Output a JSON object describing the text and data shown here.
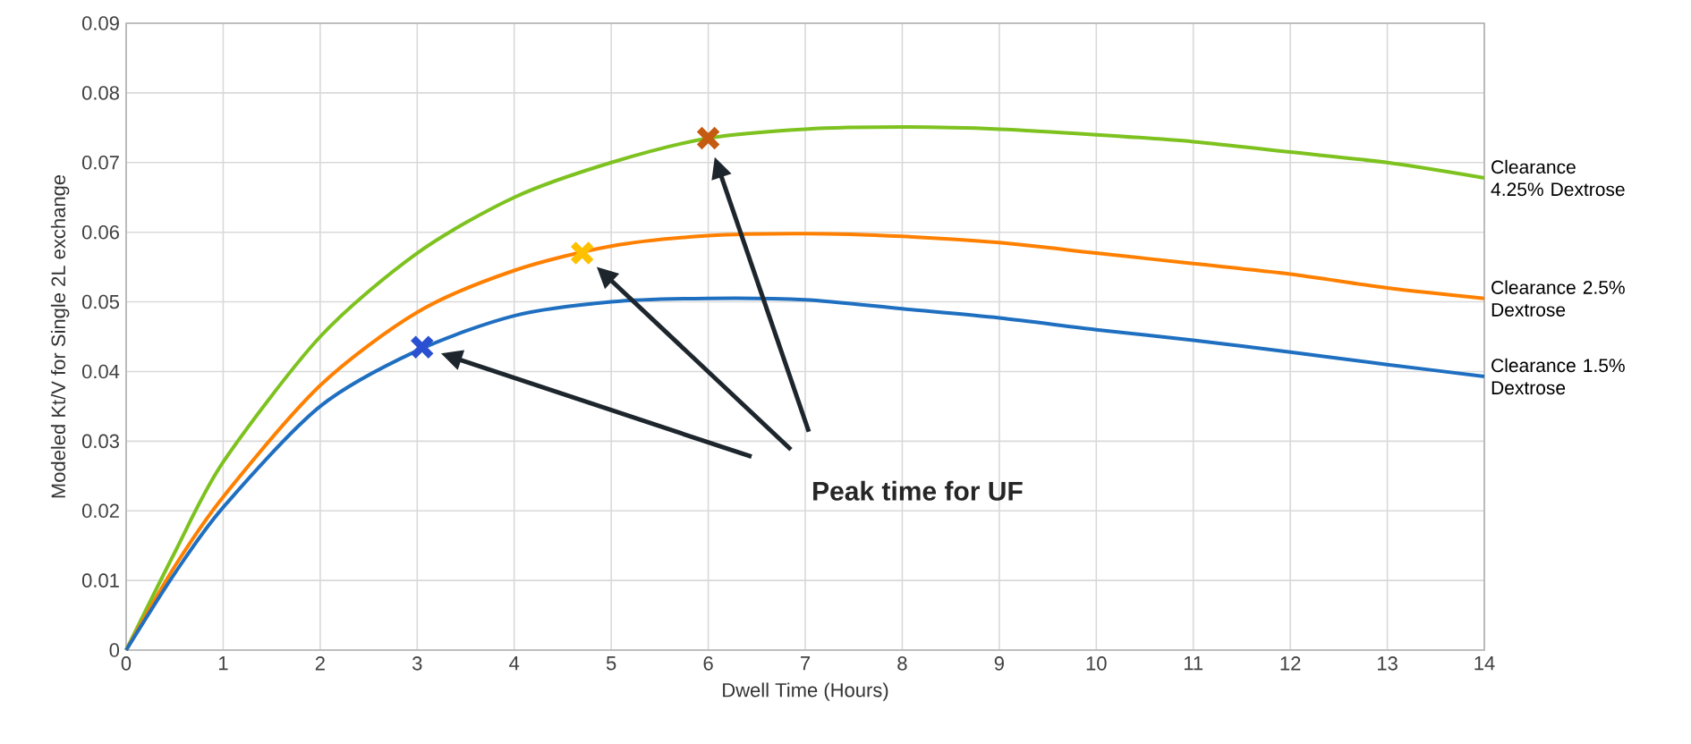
{
  "chart_data": {
    "type": "line",
    "xlabel": "Dwell Time (Hours)",
    "ylabel": "Modeled Kt/V for Single 2L exchange",
    "xlim": [
      0,
      14
    ],
    "ylim": [
      0,
      0.09
    ],
    "xticks": [
      0,
      1,
      2,
      3,
      4,
      5,
      6,
      7,
      8,
      9,
      10,
      11,
      12,
      13,
      14
    ],
    "yticks": [
      0,
      0.01,
      0.02,
      0.03,
      0.04,
      0.05,
      0.06,
      0.07,
      0.08,
      0.09
    ],
    "grid": true,
    "marker": "none",
    "line_style": "solid",
    "series": [
      {
        "name": "Clearance 4.25% Dextrose",
        "color": "#7dc21f",
        "x": [
          0,
          0.5,
          1,
          2,
          3,
          4,
          5,
          6,
          7,
          8,
          9,
          10,
          11,
          12,
          13,
          14
        ],
        "values": [
          0,
          0.014,
          0.027,
          0.045,
          0.057,
          0.065,
          0.07,
          0.0735,
          0.0748,
          0.0751,
          0.0748,
          0.074,
          0.073,
          0.0715,
          0.07,
          0.0678
        ]
      },
      {
        "name": "Clearance 2.5% Dextrose",
        "color": "#ff8000",
        "x": [
          0,
          0.5,
          1,
          2,
          3,
          4,
          5,
          6,
          7,
          8,
          9,
          10,
          11,
          12,
          13,
          14
        ],
        "values": [
          0,
          0.012,
          0.022,
          0.038,
          0.0485,
          0.0545,
          0.058,
          0.0595,
          0.0598,
          0.0594,
          0.0585,
          0.057,
          0.0555,
          0.054,
          0.052,
          0.0505
        ]
      },
      {
        "name": "Clearance 1.5% Dextrose",
        "color": "#1f6fc1",
        "x": [
          0,
          0.5,
          1,
          2,
          3,
          4,
          5,
          6,
          7,
          8,
          9,
          10,
          11,
          12,
          13,
          14
        ],
        "values": [
          0,
          0.011,
          0.0205,
          0.035,
          0.043,
          0.048,
          0.05,
          0.0505,
          0.0503,
          0.049,
          0.0477,
          0.046,
          0.0445,
          0.0428,
          0.041,
          0.0393
        ]
      },
      {
        "type": "scatter",
        "marker": "cross",
        "color": "#2a4fd0",
        "x": [
          3.05
        ],
        "values": [
          0.0435
        ]
      },
      {
        "type": "scatter",
        "marker": "cross",
        "color": "#ffc000",
        "x": [
          4.7
        ],
        "values": [
          0.057
        ]
      },
      {
        "type": "scatter",
        "marker": "cross",
        "color": "#c55a11",
        "x": [
          6
        ],
        "values": [
          0.0735
        ]
      }
    ],
    "annotations": [
      "Peak time for UF"
    ]
  }
}
